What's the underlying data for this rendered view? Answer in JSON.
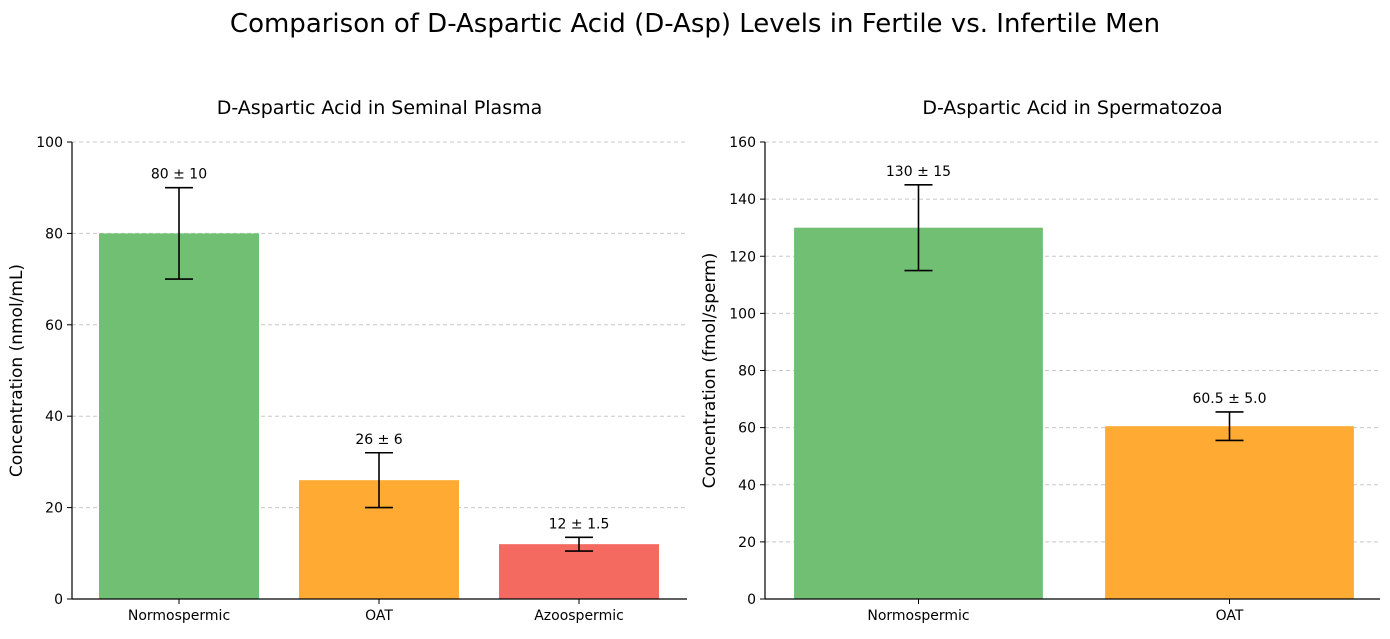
{
  "title": "Comparison of D-Aspartic Acid (D-Asp) Levels in Fertile vs. Infertile Men",
  "chart_data": [
    {
      "type": "bar",
      "title": "D-Aspartic Acid in Seminal Plasma",
      "xlabel": "",
      "ylabel": "Concentration (nmol/mL)",
      "categories": [
        "Normospermic",
        "OAT",
        "Azoospermic"
      ],
      "values": [
        80,
        26,
        12
      ],
      "errors": [
        10,
        6,
        1.5
      ],
      "data_labels": [
        "80 ± 10",
        "26 ± 6",
        "12 ± 1.5"
      ],
      "colors": [
        "#70BF73",
        "#FFAA33",
        "#F46A60"
      ],
      "ylim": [
        0,
        100
      ],
      "yticks": [
        0,
        20,
        40,
        60,
        80,
        100
      ],
      "grid": "y dashed"
    },
    {
      "type": "bar",
      "title": "D-Aspartic Acid in Spermatozoa",
      "xlabel": "",
      "ylabel": "Concentration (fmol/sperm)",
      "categories": [
        "Normospermic",
        "OAT"
      ],
      "values": [
        130,
        60.5
      ],
      "errors": [
        15,
        5.0
      ],
      "data_labels": [
        "130 ± 15",
        "60.5 ± 5.0"
      ],
      "colors": [
        "#70BF73",
        "#FFAA33"
      ],
      "ylim": [
        0,
        160
      ],
      "yticks": [
        0,
        20,
        40,
        60,
        80,
        100,
        120,
        140,
        160
      ],
      "grid": "y dashed"
    }
  ]
}
